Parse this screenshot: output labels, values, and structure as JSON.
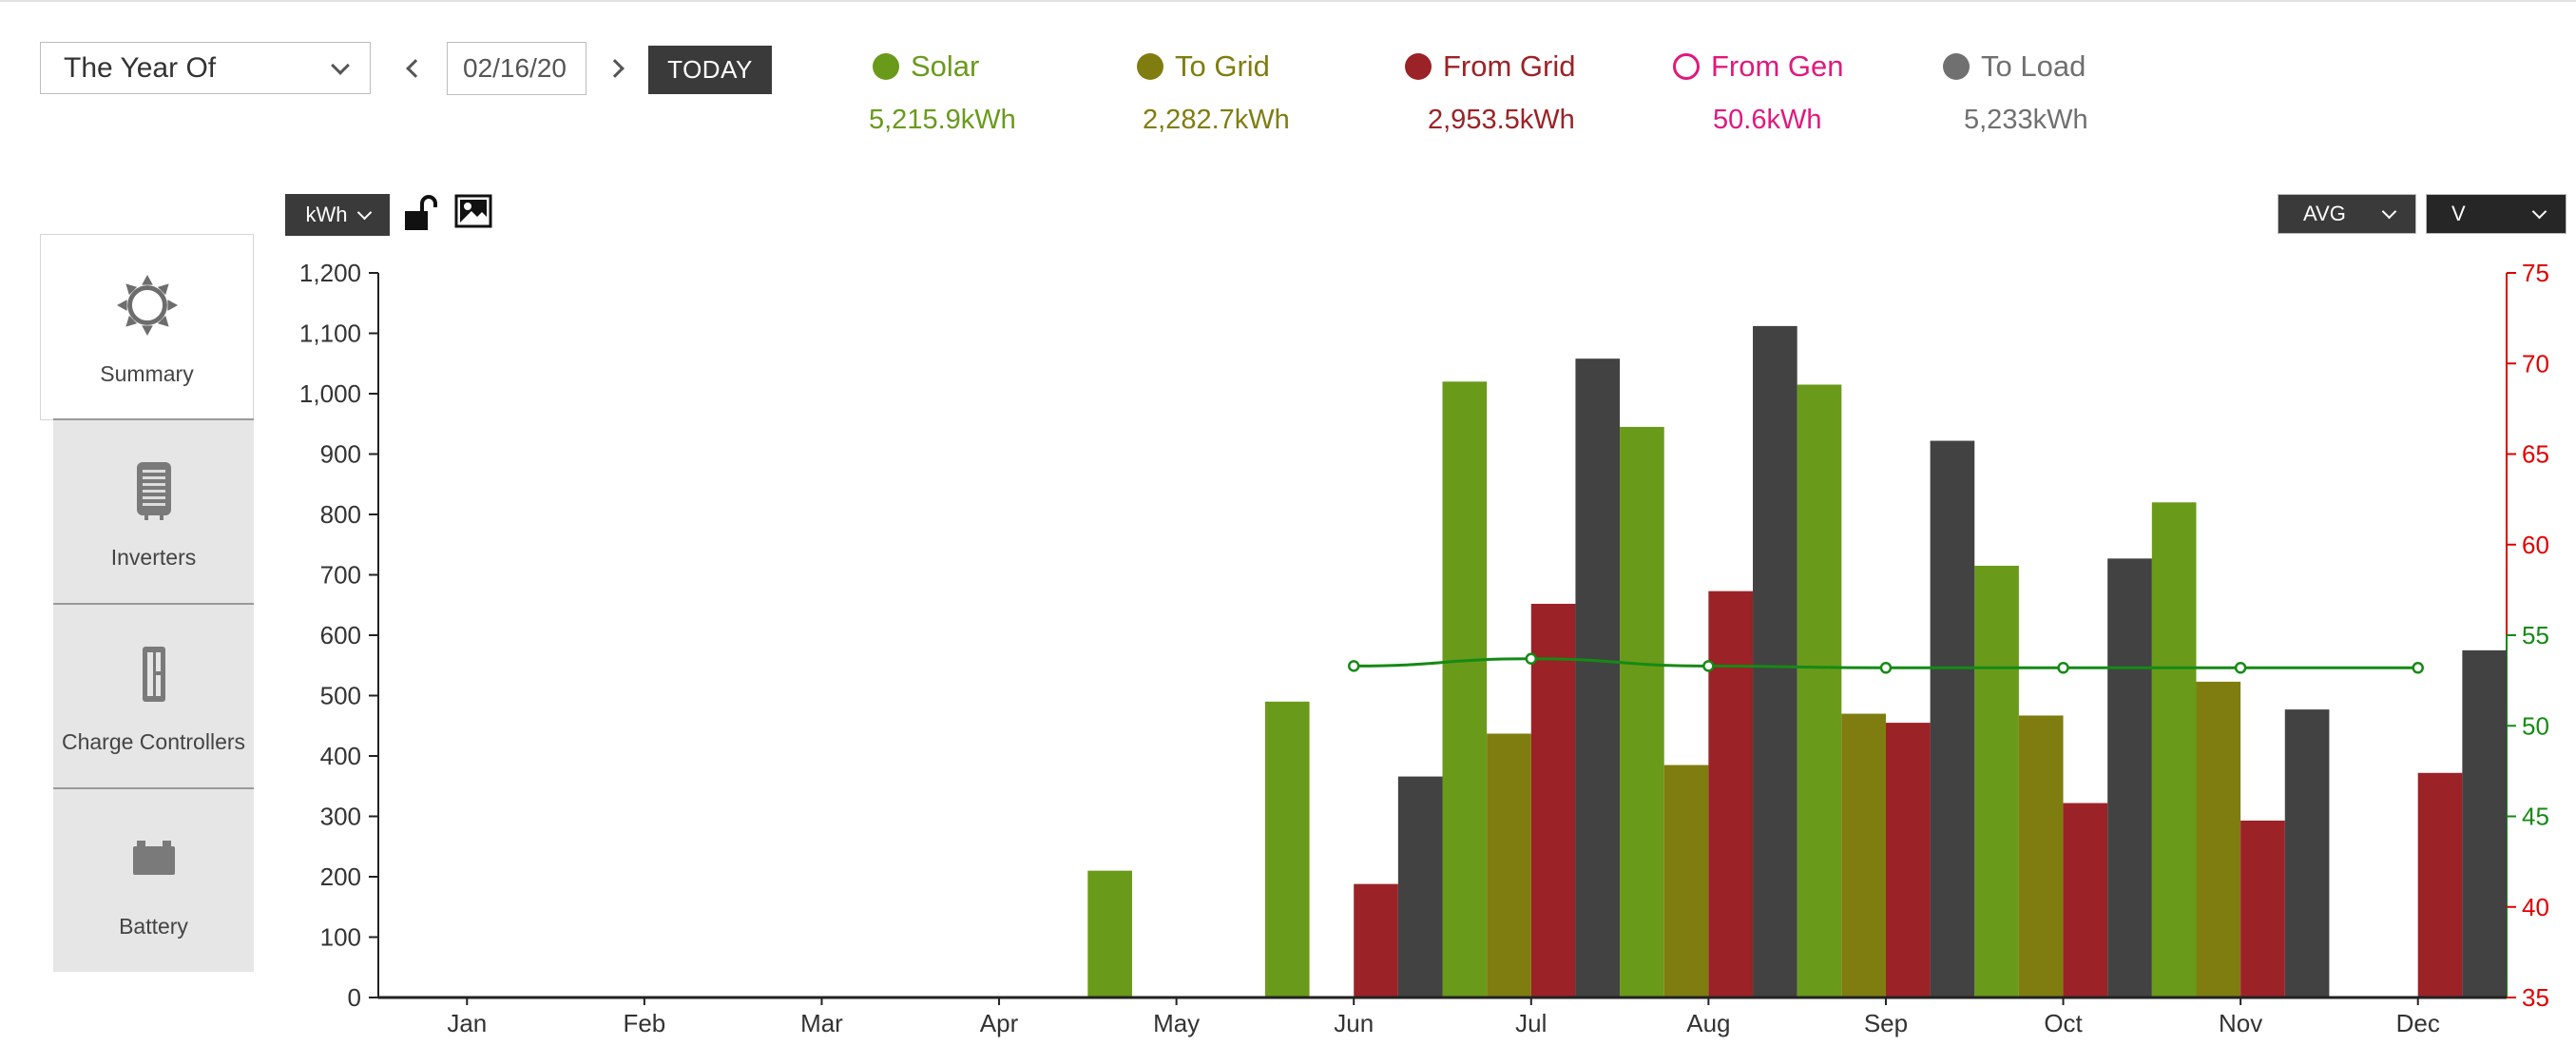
{
  "controls": {
    "period": "The Year Of",
    "date": "02/16/20",
    "today_label": "TODAY"
  },
  "legend": [
    {
      "key": "solar",
      "label": "Solar",
      "value": "5,215.9kWh",
      "color": "#6a9a1a",
      "hollow": false
    },
    {
      "key": "to_grid",
      "label": "To Grid",
      "value": "2,282.7kWh",
      "color": "#7f7d10",
      "hollow": false
    },
    {
      "key": "from_grid",
      "label": "From Grid",
      "value": "2,953.5kWh",
      "color": "#9b2226",
      "hollow": false
    },
    {
      "key": "from_gen",
      "label": "From Gen",
      "value": "50.6kWh",
      "color": "#e0197d",
      "hollow": true
    },
    {
      "key": "to_load",
      "label": "To Load",
      "value": "5,233kWh",
      "color": "#707070",
      "hollow": false
    }
  ],
  "toolbar": {
    "unit_label": "kWh",
    "lock_icon": "unlock-icon",
    "image_icon": "image-export-icon",
    "avg_label": "AVG",
    "v_label": "V"
  },
  "sidebar": {
    "items": [
      {
        "label": "Summary",
        "icon": "sun-icon"
      },
      {
        "label": "Inverters",
        "icon": "inverter-icon"
      },
      {
        "label": "Charge Controllers",
        "icon": "charge-controller-icon"
      },
      {
        "label": "Battery",
        "icon": "battery-icon"
      }
    ]
  },
  "chart_data": {
    "type": "bar",
    "categories": [
      "Jan",
      "Feb",
      "Mar",
      "Apr",
      "May",
      "Jun",
      "Jul",
      "Aug",
      "Sep",
      "Oct",
      "Nov",
      "Dec"
    ],
    "ylim": [
      0,
      1200
    ],
    "yticks": [
      0,
      100,
      200,
      300,
      400,
      500,
      600,
      700,
      800,
      900,
      1000,
      1100,
      1200
    ],
    "ytick_labels": [
      "0",
      "100",
      "200",
      "300",
      "400",
      "500",
      "600",
      "700",
      "800",
      "900",
      "1,000",
      "1,100",
      "1,200"
    ],
    "y2lim": [
      35,
      75
    ],
    "y2ticks": [
      35,
      40,
      45,
      50,
      55,
      60,
      65,
      70,
      75
    ],
    "colors": {
      "solar": "#6a9a1a",
      "to_grid": "#7f7d10",
      "from_grid": "#9b2226",
      "to_load": "#424242",
      "line": "#158a15",
      "axis_right_red": "#e00000",
      "axis_right_green": "#158a15"
    },
    "series": [
      {
        "name": "Solar",
        "key": "solar",
        "values": [
          0,
          0,
          0,
          0,
          210,
          490,
          1020,
          945,
          1015,
          715,
          820,
          0
        ]
      },
      {
        "name": "To Grid",
        "key": "to_grid",
        "values": [
          0,
          0,
          0,
          0,
          0,
          0,
          437,
          385,
          470,
          467,
          523,
          0
        ]
      },
      {
        "name": "From Grid",
        "key": "from_grid",
        "values": [
          0,
          0,
          0,
          0,
          0,
          188,
          652,
          673,
          455,
          322,
          293,
          372
        ]
      },
      {
        "name": "To Load",
        "key": "to_load",
        "values": [
          0,
          0,
          0,
          0,
          0,
          366,
          1058,
          1112,
          922,
          727,
          477,
          575
        ]
      }
    ],
    "line_series": {
      "name": "Battery Voltage (AVG)",
      "unit": "V",
      "axis": "right",
      "points": [
        [
          5,
          53.3
        ],
        [
          6,
          53.7
        ],
        [
          7,
          53.3
        ],
        [
          8,
          53.2
        ],
        [
          9,
          53.2
        ],
        [
          10,
          53.2
        ],
        [
          11,
          53.2
        ]
      ]
    }
  }
}
